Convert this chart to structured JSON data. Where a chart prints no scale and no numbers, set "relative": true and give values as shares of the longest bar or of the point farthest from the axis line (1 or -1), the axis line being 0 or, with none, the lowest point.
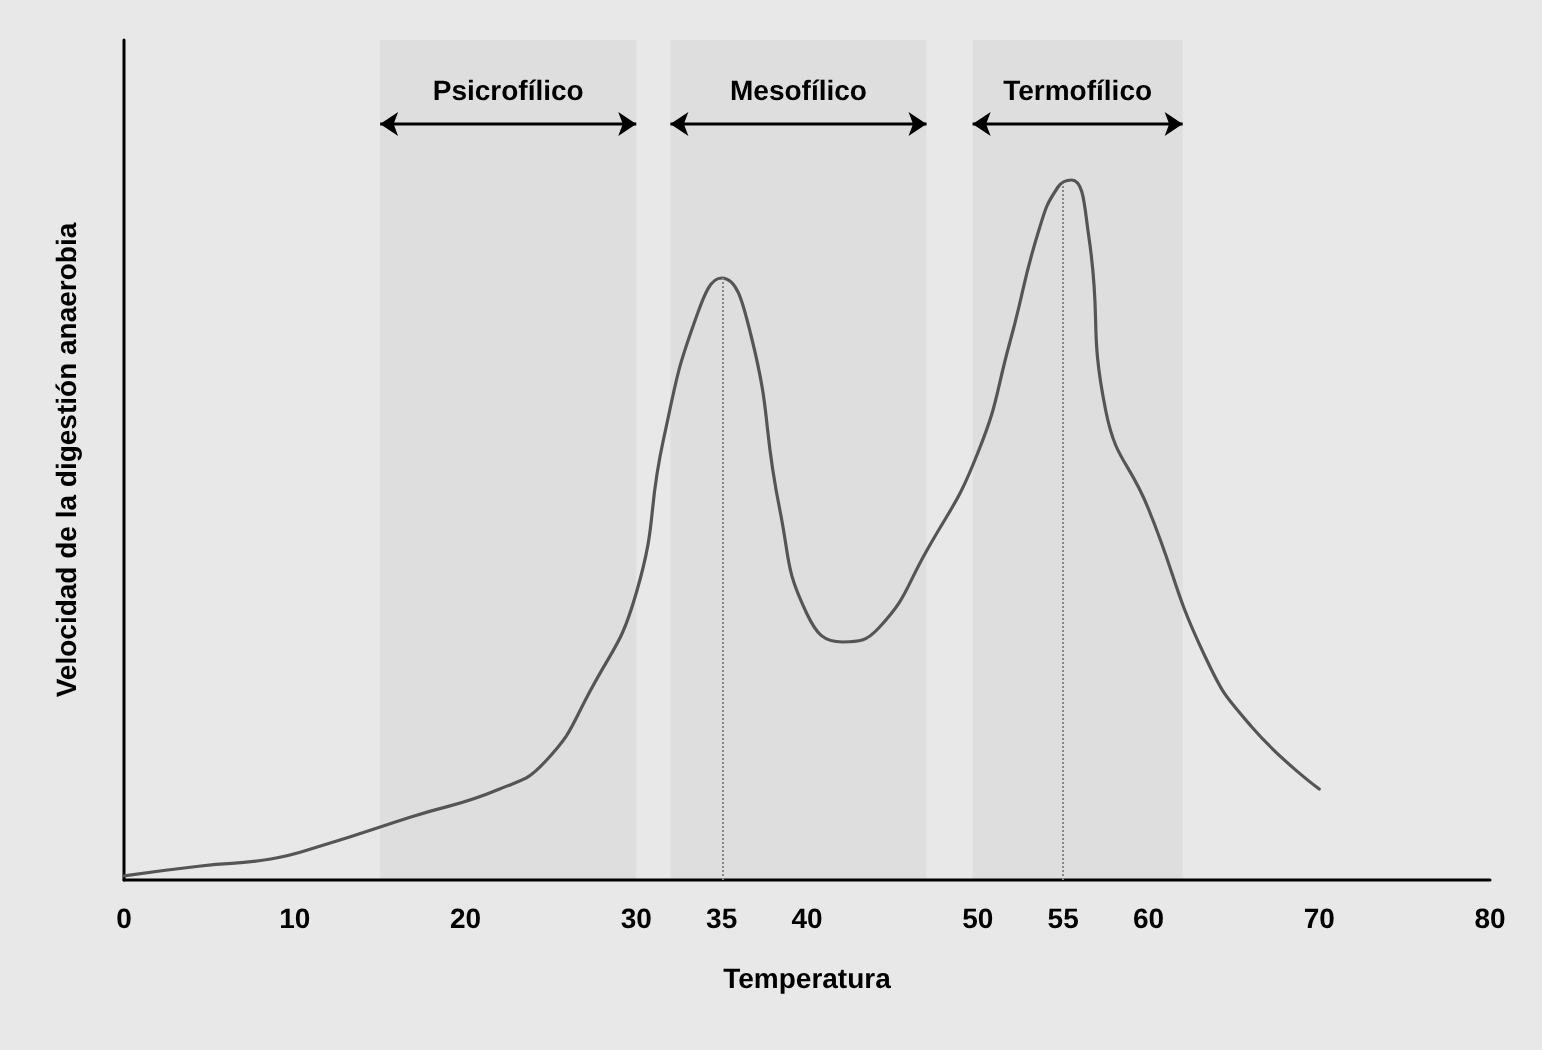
{
  "chart_data": {
    "type": "line",
    "relative": true,
    "xlabel": "Temperatura",
    "ylabel": "Velocidad de la digestión anaerobia",
    "x": [
      0,
      4.5,
      8.6,
      11.7,
      16.8,
      22,
      24.7,
      27.3,
      30,
      31.6,
      33.6,
      35,
      36.7,
      38.4,
      40,
      42.1,
      44.2,
      47,
      50,
      51.9,
      53.6,
      54.7,
      55.5,
      56.5,
      57.5,
      60,
      63.3,
      66,
      70
    ],
    "series": [
      {
        "color": "#555555",
        "values": [
          0.006,
          0.02,
          0.03,
          0.05,
          0.09,
          0.13,
          0.17,
          0.27,
          0.41,
          0.63,
          0.81,
          0.86,
          0.78,
          0.53,
          0.38,
          0.34,
          0.36,
          0.47,
          0.61,
          0.77,
          0.93,
          0.99,
          1.0,
          0.92,
          0.67,
          0.53,
          0.32,
          0.22,
          0.13
        ]
      }
    ],
    "xlim": [
      0,
      80
    ],
    "xticks": [
      0,
      10,
      20,
      30,
      35,
      40,
      50,
      55,
      60,
      70,
      80
    ],
    "tick_labels": "x",
    "grid": false,
    "marker": "none",
    "line_style": "solid",
    "ref_lines": [
      {
        "axis": "x",
        "value": 35,
        "line_style": "dotted",
        "color": "#888888"
      },
      {
        "axis": "x",
        "value": 55,
        "line_style": "dotted",
        "color": "#888888"
      }
    ],
    "bands": [
      {
        "axis": "x",
        "from": 15,
        "to": 30,
        "label": "Psicrofílico"
      },
      {
        "axis": "x",
        "from": 32,
        "to": 47,
        "label": "Mesofílico"
      },
      {
        "axis": "x",
        "from": 49.7,
        "to": 62,
        "label": "Termofílico"
      }
    ]
  }
}
